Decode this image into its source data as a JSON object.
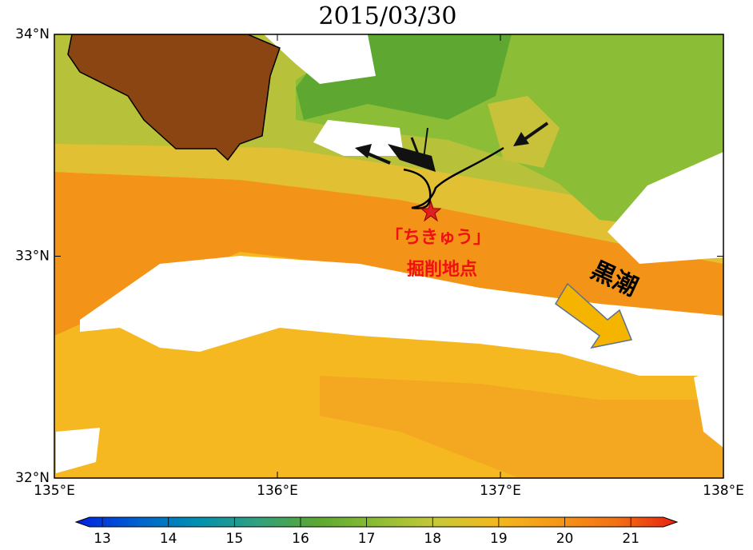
{
  "map": {
    "title": "2015/03/30",
    "xlim": [
      135,
      138
    ],
    "ylim": [
      32,
      34
    ],
    "xticks": [
      {
        "value": 135,
        "label": "135°E"
      },
      {
        "value": 136,
        "label": "136°E"
      },
      {
        "value": 137,
        "label": "137°E"
      },
      {
        "value": 138,
        "label": "138°E"
      }
    ],
    "yticks": [
      {
        "value": 32,
        "label": "32°N"
      },
      {
        "value": 33,
        "label": "33°N"
      },
      {
        "value": 34,
        "label": "34°N"
      }
    ],
    "colorbar": {
      "lim": [
        12.6,
        21.7
      ],
      "ticks": [
        13,
        14,
        15,
        16,
        17,
        18,
        19,
        20,
        21
      ]
    },
    "site_label": [
      "「ちきゅう」",
      "掘削地点"
    ],
    "current_label": "黒潮"
  }
}
